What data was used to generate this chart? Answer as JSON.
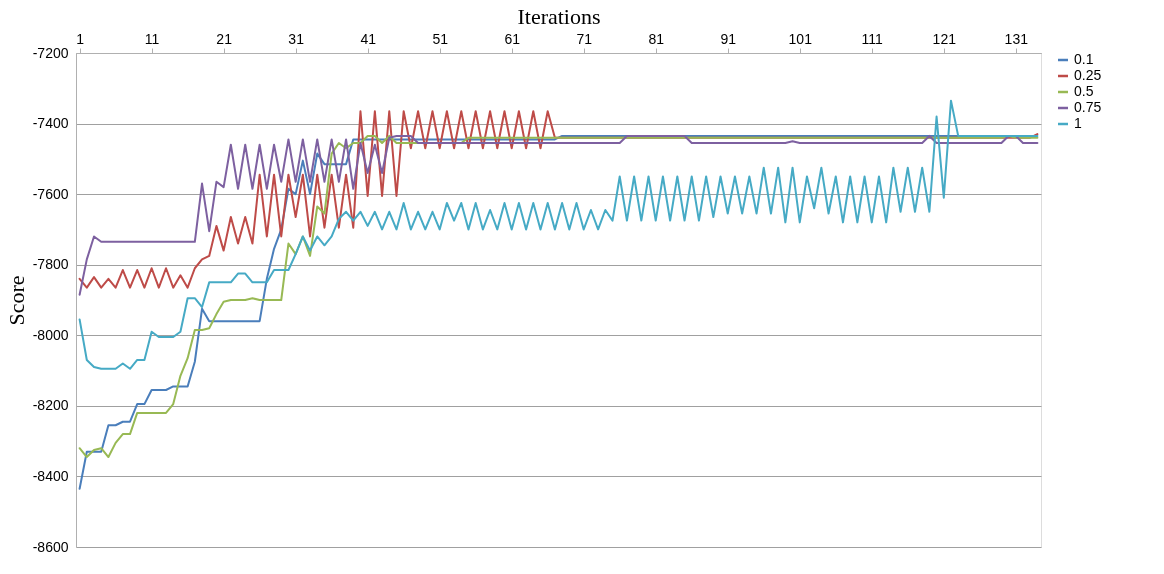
{
  "chart_data": {
    "type": "line",
    "xlabel": "Iterations",
    "ylabel": "Score",
    "x": [
      1,
      2,
      3,
      4,
      5,
      6,
      7,
      8,
      9,
      10,
      11,
      12,
      13,
      14,
      15,
      16,
      17,
      18,
      19,
      20,
      21,
      22,
      23,
      24,
      25,
      26,
      27,
      28,
      29,
      30,
      31,
      32,
      33,
      34,
      35,
      36,
      37,
      38,
      39,
      40,
      41,
      42,
      43,
      44,
      45,
      46,
      47,
      48,
      49,
      50,
      51,
      52,
      53,
      54,
      55,
      56,
      57,
      58,
      59,
      60,
      61,
      62,
      63,
      64,
      65,
      66,
      67,
      68,
      69,
      70,
      71,
      72,
      73,
      74,
      75,
      76,
      77,
      78,
      79,
      80,
      81,
      82,
      83,
      84,
      85,
      86,
      87,
      88,
      89,
      90,
      91,
      92,
      93,
      94,
      95,
      96,
      97,
      98,
      99,
      100,
      101,
      102,
      103,
      104,
      105,
      106,
      107,
      108,
      109,
      110,
      111,
      112,
      113,
      114,
      115,
      116,
      117,
      118,
      119,
      120,
      121,
      122,
      123,
      124,
      125,
      126,
      127,
      128,
      129,
      130,
      131,
      132,
      133,
      134
    ],
    "xlim": [
      0.5,
      134.5
    ],
    "xticks": [
      1,
      11,
      21,
      31,
      41,
      51,
      61,
      71,
      81,
      91,
      101,
      111,
      121,
      131
    ],
    "ylim": [
      -8600,
      -7200
    ],
    "yticks": [
      -8600,
      -8400,
      -8200,
      -8000,
      -7800,
      -7600,
      -7400,
      -7200
    ],
    "grid": "y",
    "legend": "right",
    "line_style": "solid",
    "series": [
      {
        "name": "0.1",
        "color": "#4a7ebb",
        "values": [
          -8435,
          -8330,
          -8330,
          -8330,
          -8255,
          -8255,
          -8245,
          -8245,
          -8195,
          -8195,
          -8155,
          -8155,
          -8155,
          -8145,
          -8145,
          -8145,
          -8075,
          -7925,
          -7960,
          -7960,
          -7960,
          -7960,
          -7960,
          -7960,
          -7960,
          -7960,
          -7840,
          -7755,
          -7700,
          -7585,
          -7600,
          -7505,
          -7600,
          -7485,
          -7515,
          -7515,
          -7515,
          -7515,
          -7445,
          -7445,
          -7445,
          -7445,
          -7445,
          -7445,
          -7445,
          -7445,
          -7445,
          -7445,
          -7445,
          -7445,
          -7445,
          -7445,
          -7445,
          -7445,
          -7445,
          -7445,
          -7445,
          -7445,
          -7445,
          -7445,
          -7445,
          -7445,
          -7445,
          -7445,
          -7445,
          -7445,
          -7445,
          -7435,
          -7435,
          -7435,
          -7435,
          -7435,
          -7435,
          -7435,
          -7435,
          -7435,
          -7435,
          -7435,
          -7435,
          -7435,
          -7435,
          -7435,
          -7435,
          -7435,
          -7435,
          -7435,
          -7435,
          -7435,
          -7435,
          -7435,
          -7435,
          -7435,
          -7435,
          -7435,
          -7435,
          -7435,
          -7435,
          -7435,
          -7435,
          -7435,
          -7435,
          -7435,
          -7435,
          -7435,
          -7435,
          -7435,
          -7435,
          -7435,
          -7435,
          -7435,
          -7435,
          -7435,
          -7435,
          -7435,
          -7435,
          -7435,
          -7435,
          -7435,
          -7435,
          -7435,
          -7435,
          -7435,
          -7435,
          -7435,
          -7435,
          -7435,
          -7435,
          -7435,
          -7435,
          -7435,
          -7435,
          null,
          null,
          null
        ]
      },
      {
        "name": "0.25",
        "color": "#be4b48",
        "values": [
          -7840,
          -7865,
          -7835,
          -7865,
          -7840,
          -7865,
          -7815,
          -7865,
          -7815,
          -7865,
          -7810,
          -7865,
          -7810,
          -7865,
          -7830,
          -7865,
          -7810,
          -7785,
          -7775,
          -7690,
          -7760,
          -7665,
          -7740,
          -7665,
          -7740,
          -7545,
          -7720,
          -7545,
          -7720,
          -7545,
          -7665,
          -7545,
          -7720,
          -7545,
          -7695,
          -7545,
          -7695,
          -7545,
          -7695,
          -7365,
          -7605,
          -7365,
          -7605,
          -7365,
          -7605,
          -7365,
          -7470,
          -7365,
          -7470,
          -7365,
          -7470,
          -7365,
          -7470,
          -7365,
          -7470,
          -7365,
          -7470,
          -7365,
          -7470,
          -7365,
          -7470,
          -7365,
          -7470,
          -7365,
          -7470,
          -7365,
          -7440,
          -7440,
          -7440,
          -7440,
          -7440,
          -7440,
          -7440,
          -7440,
          -7440,
          -7440,
          -7440,
          -7440,
          -7440,
          -7440,
          -7440,
          -7440,
          -7440,
          -7440,
          -7440,
          -7440,
          -7440,
          -7440,
          -7440,
          -7440,
          -7440,
          -7440,
          -7440,
          -7440,
          -7440,
          -7440,
          -7440,
          -7440,
          -7440,
          -7440,
          -7440,
          -7440,
          -7440,
          -7440,
          -7440,
          -7440,
          -7440,
          -7440,
          -7440,
          -7440,
          -7440,
          -7440,
          -7440,
          -7440,
          -7440,
          -7440,
          -7440,
          -7440,
          -7440,
          -7440,
          -7440,
          -7440,
          -7440,
          -7440,
          -7440,
          -7440,
          -7440,
          -7440,
          -7440,
          -7440,
          -7440,
          -7440,
          -7440,
          -7430
        ]
      },
      {
        "name": "0.5",
        "color": "#98b954",
        "values": [
          -8320,
          -8345,
          -8325,
          -8320,
          -8345,
          -8305,
          -8280,
          -8280,
          -8220,
          -8220,
          -8220,
          -8220,
          -8220,
          -8195,
          -8115,
          -8065,
          -7985,
          -7985,
          -7980,
          -7940,
          -7905,
          -7900,
          -7900,
          -7900,
          -7895,
          -7900,
          -7900,
          -7900,
          -7900,
          -7740,
          -7770,
          -7720,
          -7775,
          -7635,
          -7655,
          -7485,
          -7455,
          -7470,
          -7455,
          -7455,
          -7435,
          -7435,
          -7455,
          -7435,
          -7455,
          -7455,
          -7455,
          -7455,
          -7455,
          -7455,
          -7455,
          -7455,
          -7455,
          -7455,
          -7440,
          -7440,
          -7440,
          -7440,
          -7440,
          -7440,
          -7440,
          -7440,
          -7440,
          -7440,
          -7440,
          -7440,
          -7440,
          -7440,
          -7440,
          -7440,
          -7440,
          -7440,
          -7440,
          -7440,
          -7440,
          -7440,
          -7440,
          -7440,
          -7440,
          -7440,
          -7440,
          -7440,
          -7440,
          -7440,
          -7440,
          -7440,
          -7440,
          -7440,
          -7440,
          -7440,
          -7440,
          -7440,
          -7440,
          -7440,
          -7440,
          -7440,
          -7440,
          -7440,
          -7440,
          -7440,
          -7440,
          -7440,
          -7440,
          -7440,
          -7440,
          -7440,
          -7440,
          -7440,
          -7440,
          -7440,
          -7440,
          -7440,
          -7440,
          -7440,
          -7440,
          -7440,
          -7440,
          -7440,
          -7440,
          -7440,
          -7440,
          -7440,
          -7440,
          -7440,
          -7440,
          -7440,
          -7440,
          -7440,
          -7440,
          -7435,
          -7440,
          -7440,
          -7440,
          -7440
        ]
      },
      {
        "name": "0.75",
        "color": "#7d60a0",
        "values": [
          -7885,
          -7785,
          -7720,
          -7735,
          -7735,
          -7735,
          -7735,
          -7735,
          -7735,
          -7735,
          -7735,
          -7735,
          -7735,
          -7735,
          -7735,
          -7735,
          -7735,
          -7570,
          -7705,
          -7565,
          -7580,
          -7460,
          -7585,
          -7460,
          -7585,
          -7460,
          -7585,
          -7460,
          -7565,
          -7445,
          -7565,
          -7445,
          -7565,
          -7445,
          -7565,
          -7445,
          -7565,
          -7445,
          -7585,
          -7455,
          -7540,
          -7460,
          -7540,
          -7440,
          -7435,
          -7435,
          -7435,
          -7455,
          -7455,
          -7455,
          -7455,
          -7455,
          -7455,
          -7455,
          -7455,
          -7455,
          -7455,
          -7455,
          -7455,
          -7455,
          -7455,
          -7455,
          -7455,
          -7455,
          -7455,
          -7455,
          -7455,
          -7455,
          -7455,
          -7455,
          -7455,
          -7455,
          -7455,
          -7455,
          -7455,
          -7455,
          -7435,
          -7435,
          -7435,
          -7435,
          -7435,
          -7435,
          -7435,
          -7435,
          -7435,
          -7455,
          -7455,
          -7455,
          -7455,
          -7455,
          -7455,
          -7455,
          -7455,
          -7455,
          -7455,
          -7455,
          -7455,
          -7455,
          -7455,
          -7450,
          -7455,
          -7455,
          -7455,
          -7455,
          -7455,
          -7455,
          -7455,
          -7455,
          -7455,
          -7455,
          -7455,
          -7455,
          -7455,
          -7455,
          -7455,
          -7455,
          -7455,
          -7455,
          -7435,
          -7455,
          -7455,
          -7455,
          -7455,
          -7455,
          -7455,
          -7455,
          -7455,
          -7455,
          -7455,
          -7435,
          -7435,
          -7455,
          -7455,
          -7455
        ]
      },
      {
        "name": "1",
        "color": "#46aac5",
        "values": [
          -7955,
          -8070,
          -8090,
          -8095,
          -8095,
          -8095,
          -8080,
          -8095,
          -8070,
          -8070,
          -7990,
          -8005,
          -8005,
          -8005,
          -7990,
          -7895,
          -7895,
          -7920,
          -7850,
          -7850,
          -7850,
          -7850,
          -7825,
          -7825,
          -7850,
          -7850,
          -7850,
          -7815,
          -7815,
          -7815,
          -7770,
          -7720,
          -7760,
          -7720,
          -7745,
          -7720,
          -7670,
          -7650,
          -7675,
          -7650,
          -7690,
          -7650,
          -7700,
          -7650,
          -7700,
          -7625,
          -7700,
          -7650,
          -7700,
          -7650,
          -7700,
          -7625,
          -7675,
          -7625,
          -7700,
          -7625,
          -7700,
          -7645,
          -7700,
          -7625,
          -7700,
          -7625,
          -7700,
          -7625,
          -7700,
          -7625,
          -7700,
          -7625,
          -7700,
          -7625,
          -7700,
          -7645,
          -7700,
          -7645,
          -7675,
          -7550,
          -7675,
          -7550,
          -7675,
          -7550,
          -7675,
          -7550,
          -7675,
          -7550,
          -7675,
          -7550,
          -7675,
          -7550,
          -7665,
          -7550,
          -7655,
          -7550,
          -7655,
          -7550,
          -7655,
          -7525,
          -7655,
          -7525,
          -7680,
          -7525,
          -7680,
          -7550,
          -7640,
          -7525,
          -7655,
          -7550,
          -7680,
          -7550,
          -7680,
          -7550,
          -7680,
          -7550,
          -7680,
          -7525,
          -7650,
          -7525,
          -7650,
          -7525,
          -7650,
          -7380,
          -7610,
          -7335,
          -7435,
          -7435,
          -7435,
          -7435,
          -7435,
          -7435,
          -7435,
          -7435,
          -7435,
          -7435,
          -7435,
          -7435
        ]
      }
    ]
  }
}
